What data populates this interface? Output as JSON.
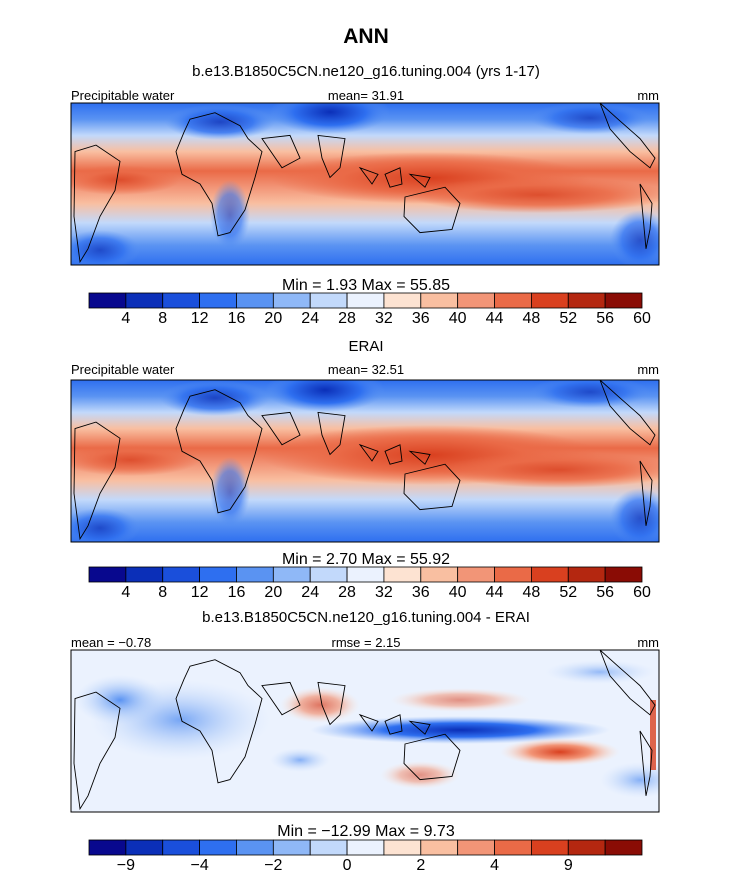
{
  "page_title": "ANN",
  "colors": {
    "pw_scale": [
      "#08088e",
      "#0b2fb8",
      "#1a4fdb",
      "#2e6ff0",
      "#5a93f2",
      "#8fb8f7",
      "#c2d9fb",
      "#ebf2fe",
      "#fde3d2",
      "#f9bfa1",
      "#f29577",
      "#ea6a47",
      "#d9401f",
      "#b42710",
      "#8a0c05"
    ],
    "diff_scale": [
      "#08088e",
      "#0b2fb8",
      "#1a4fdb",
      "#2e6ff0",
      "#5a93f2",
      "#8fb8f7",
      "#c2d9fb",
      "#ebf2fe",
      "#fde3d2",
      "#f9bfa1",
      "#f29577",
      "#ea6a47",
      "#d9401f",
      "#b42710",
      "#8a0c05"
    ],
    "coast": "#000000"
  },
  "chart_data": [
    {
      "type": "heatmap",
      "title": "b.e13.B1850C5CN.ne120_g16.tuning.004 (yrs 1-17)",
      "left_label": "Precipitable water",
      "center_label": "mean=  31.91",
      "units": "mm",
      "stats": "Min =    1.93  Max =   55.85",
      "colorbar_ticks": [
        "4",
        "8",
        "12",
        "16",
        "20",
        "24",
        "28",
        "32",
        "36",
        "40",
        "44",
        "48",
        "52",
        "56",
        "60"
      ]
    },
    {
      "type": "heatmap",
      "title": "ERAI",
      "left_label": "Precipitable water",
      "center_label": "mean=  32.51",
      "units": "mm",
      "stats": "Min =    2.70  Max =   55.92",
      "colorbar_ticks": [
        "4",
        "8",
        "12",
        "16",
        "20",
        "24",
        "28",
        "32",
        "36",
        "40",
        "44",
        "48",
        "52",
        "56",
        "60"
      ]
    },
    {
      "type": "heatmap",
      "title": "b.e13.B1850C5CN.ne120_g16.tuning.004 - ERAI",
      "left_label": "mean =  −0.78",
      "center_label": "rmse =    2.15",
      "units": "mm",
      "stats": "Min = −12.99  Max =    9.73",
      "colorbar_ticks": [
        "−9",
        "−4",
        "−2",
        "0",
        "2",
        "4",
        "9"
      ]
    }
  ]
}
